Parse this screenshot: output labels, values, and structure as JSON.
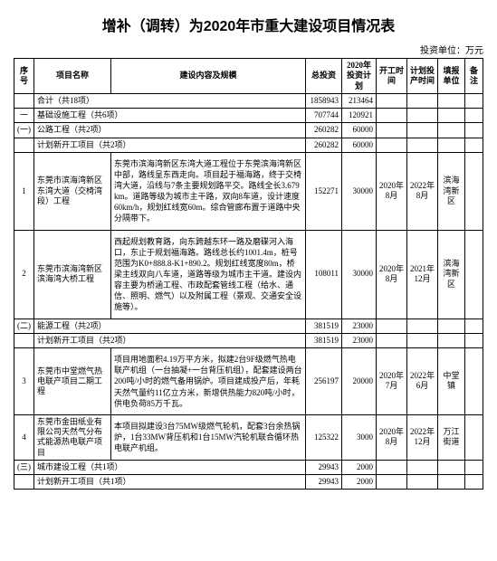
{
  "title": "增补（调转）为2020年市重大建设项目情况表",
  "unit_label": "投资单位：万元",
  "headers": {
    "idx": "序号",
    "name": "项目名称",
    "desc": "建设内容及规模",
    "total_inv": "总投资",
    "plan_2020": "2020年投资计划",
    "start": "开工时间",
    "end": "计划投产时间",
    "resp_unit": "填报单位",
    "note": "备注"
  },
  "rows": [
    {
      "type": "sum",
      "idx": "",
      "name": "合计（共18项）",
      "inv": "1858943",
      "plan": "213464"
    },
    {
      "type": "cat",
      "idx": "一",
      "name": "基础设施工程（共6项）",
      "inv": "707744",
      "plan": "120921"
    },
    {
      "type": "cat",
      "idx": "(一)",
      "name": "公路工程（共2项）",
      "inv": "260282",
      "plan": "60000"
    },
    {
      "type": "sub",
      "idx": "",
      "name": "计划新开工项目（共2项）",
      "inv": "260282",
      "plan": "60000"
    },
    {
      "type": "item",
      "idx": "1",
      "name": "东莞市滨海湾新区东湾大道（交椅湾段）工程",
      "desc": "东莞市滨海湾新区东湾大道工程位于东莞滨海湾新区中部，路线呈东西走向。项目起于福海路，终于交椅湾大道，沿线与7条主要规划路平交。路线全长3.679km。道路等级为城市主干路，双向8车道，设计速度60km/h，规划红线宽60m。综合管廊布置于道路中央分隔带下。",
      "inv": "152271",
      "plan": "30000",
      "start": "2020年8月",
      "end": "2022年8月",
      "unit": "滨海湾新区"
    },
    {
      "type": "item",
      "idx": "2",
      "name": "东莞市滨海湾新区滨海湾大桥工程",
      "desc": "西起规划教育路，向东跨越东环一路及磨碟河入海口，东止于规划福海路。路线总长约1001.4m，桩号范围为K0+888.8-K1+890.2。规划红线宽度80m，桥梁主线双向八车道，道路等级为城市主干道。建设内容主要为桥涵工程、市政配套管线工程（给水、通信、照明、燃气）以及附属工程（景观、交通安全设施等）。",
      "inv": "108011",
      "plan": "30000",
      "start": "2020年8月",
      "end": "2021年12月",
      "unit": "滨海湾新区"
    },
    {
      "type": "cat",
      "idx": "(二)",
      "name": "能源工程（共2项）",
      "inv": "381519",
      "plan": "23000"
    },
    {
      "type": "sub",
      "idx": "",
      "name": "计划新开工项目（共2项）",
      "inv": "381519",
      "plan": "23000"
    },
    {
      "type": "item",
      "idx": "3",
      "name": "东莞市中堂燃气热电联产项目二期工程",
      "desc": "项目用地面积4.19万平方米，拟建2台9F级燃气热电联产机组（一台抽凝+一台背压机组），配套建设两台200吨/小时的燃气备用锅炉。项目建成投产后，年耗天然气量约11亿立方米，新增供热能力820吨/小时，供电负荷85万千瓦。",
      "inv": "256197",
      "plan": "20000",
      "start": "2020年7月",
      "end": "2022年6月",
      "unit": "中堂镇"
    },
    {
      "type": "item",
      "idx": "4",
      "name": "东莞市金田纸业有限公司天然气分布式能源热电联产项目",
      "desc": "本项目拟建设3台75MW级燃气轮机，配套3台余热锅炉，1台33MW背压机和1台15MW汽轮机联合循环热电联产机组。",
      "inv": "125322",
      "plan": "3000",
      "start": "2020年8月",
      "end": "2022年12月",
      "unit": "万江街道"
    },
    {
      "type": "cat",
      "idx": "(三)",
      "name": "城市建设工程（共1项）",
      "inv": "29943",
      "plan": "2000"
    },
    {
      "type": "sub",
      "idx": "",
      "name": "计划新开工项目（共1项）",
      "inv": "29943",
      "plan": "2000"
    }
  ]
}
